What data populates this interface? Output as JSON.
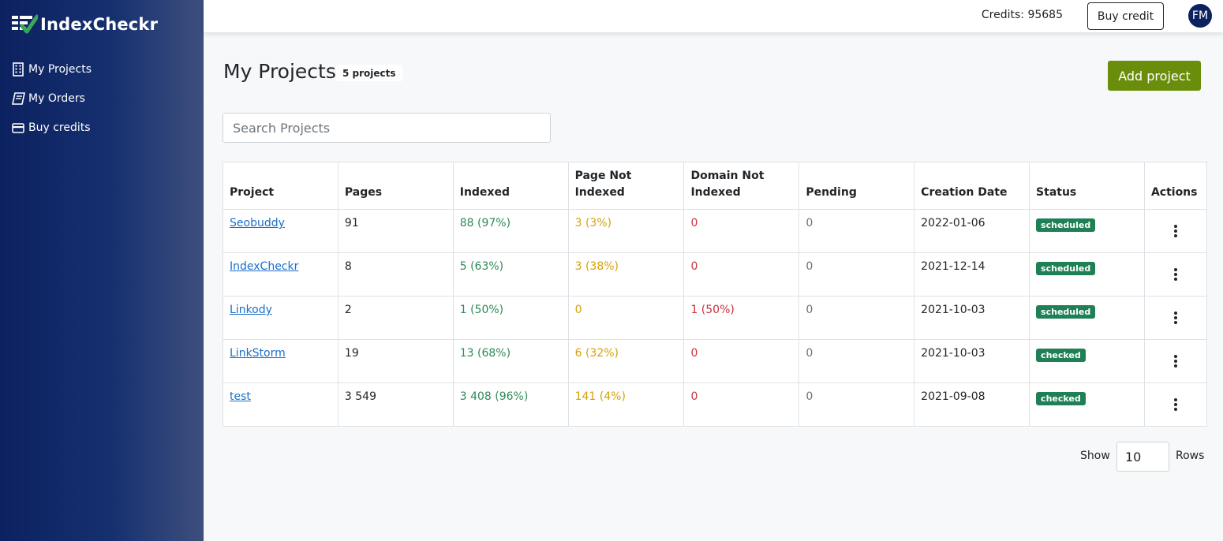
{
  "app": {
    "name": "IndexCheckr"
  },
  "sidebar": {
    "items": [
      {
        "label": "My Projects",
        "icon": "building-icon"
      },
      {
        "label": "My Orders",
        "icon": "book-icon"
      },
      {
        "label": "Buy credits",
        "icon": "credit-card-icon"
      }
    ]
  },
  "topbar": {
    "credits": "Credits: 95685",
    "buy_label": "Buy credit",
    "avatar": "FM"
  },
  "main": {
    "title": "My Projects",
    "count_badge": "5 projects",
    "add_label": "Add project",
    "search_placeholder": "Search Projects",
    "columns": [
      "Project",
      "Pages",
      "Indexed",
      "Page Not Indexed",
      "Domain Not Indexed",
      "Pending",
      "Creation Date",
      "Status",
      "Actions"
    ],
    "rows": [
      {
        "project": "Seobuddy",
        "pages": "91",
        "indexed": "88 (97%)",
        "page_not_indexed": "3 (3%)",
        "domain_not_indexed": "0",
        "pending": "0",
        "date": "2022-01-06",
        "status": "scheduled"
      },
      {
        "project": "IndexCheckr",
        "pages": "8",
        "indexed": "5 (63%)",
        "page_not_indexed": "3 (38%)",
        "domain_not_indexed": "0",
        "pending": "0",
        "date": "2021-12-14",
        "status": "scheduled"
      },
      {
        "project": "Linkody",
        "pages": "2",
        "indexed": "1 (50%)",
        "page_not_indexed": "0",
        "domain_not_indexed": "1 (50%)",
        "pending": "0",
        "date": "2021-10-03",
        "status": "scheduled"
      },
      {
        "project": "LinkStorm",
        "pages": "19",
        "indexed": "13 (68%)",
        "page_not_indexed": "6 (32%)",
        "domain_not_indexed": "0",
        "pending": "0",
        "date": "2021-10-03",
        "status": "checked"
      },
      {
        "project": "test",
        "pages": "3 549",
        "indexed": "3 408 (96%)",
        "page_not_indexed": "141 (4%)",
        "domain_not_indexed": "0",
        "pending": "0",
        "date": "2021-09-08",
        "status": "checked"
      }
    ],
    "pagination": {
      "show_label": "Show",
      "rows_value": "10",
      "rows_label": "Rows"
    }
  },
  "colors": {
    "sidebar_start": "#0c2160",
    "accent_green": "#6a8e0b",
    "indexed": "#2e8b57",
    "page_not_indexed": "#d4a20a",
    "domain_not_indexed": "#c9303c",
    "status_badge": "#1f8055"
  }
}
